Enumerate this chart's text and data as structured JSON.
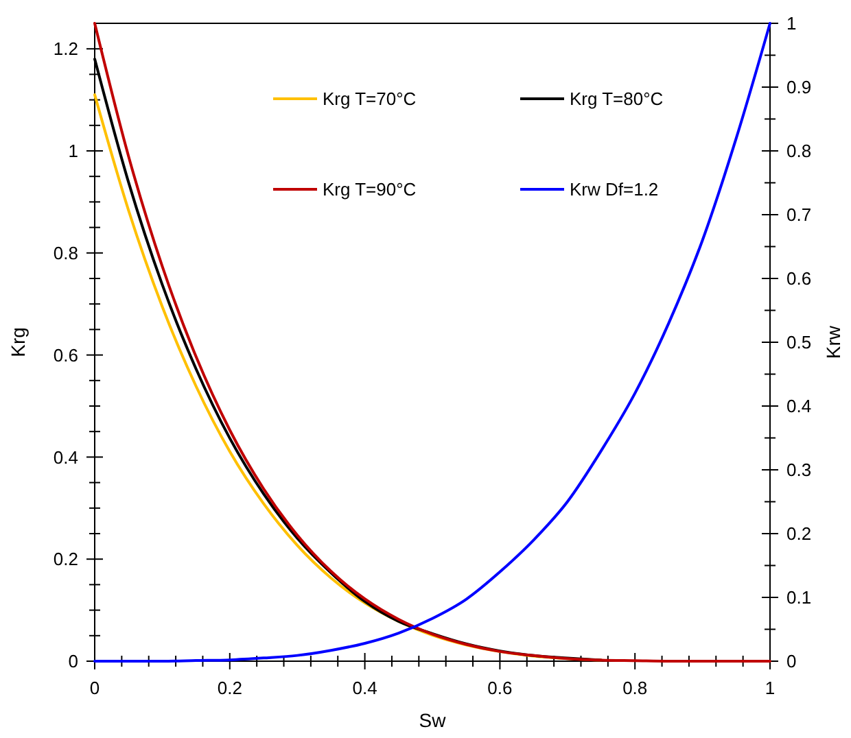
{
  "chart_data": {
    "type": "line",
    "xlabel": "Sw",
    "ylabel": "Krg",
    "y2label": "Krw",
    "x": [
      0,
      0.05,
      0.1,
      0.15,
      0.2,
      0.25,
      0.3,
      0.35,
      0.4,
      0.45,
      0.5,
      0.55,
      0.6,
      0.65,
      0.7,
      0.75,
      0.8,
      0.85,
      0.9,
      0.95,
      1
    ],
    "series": [
      {
        "name": "Krg T=70°C",
        "color": "#ffc000",
        "values": [
          1.11,
          0.884,
          0.695,
          0.539,
          0.411,
          0.309,
          0.227,
          0.163,
          0.114,
          0.078,
          0.051,
          0.032,
          0.019,
          0.01,
          0.005,
          0.002,
          null,
          null,
          null,
          null,
          null
        ]
      },
      {
        "name": "Krg T=80°C",
        "color": "#000000",
        "values": [
          1.18,
          0.939,
          0.738,
          0.573,
          0.437,
          0.328,
          0.241,
          0.173,
          0.117,
          0.078,
          0.054,
          0.034,
          0.02,
          0.011,
          0.006,
          0.002,
          null,
          null,
          null,
          null,
          null
        ]
      },
      {
        "name": "Krg T=90°C",
        "color": "#c00000",
        "values": [
          1.25,
          0.99,
          0.774,
          0.597,
          0.453,
          0.338,
          0.247,
          0.176,
          0.122,
          0.082,
          0.053,
          0.033,
          0.019,
          0.011,
          0.005,
          0.002,
          0.001,
          0,
          0,
          0,
          0
        ]
      },
      {
        "name": "Krw Df=1.2",
        "color": "#0000ff",
        "axis": "y2",
        "values": [
          0,
          0,
          0,
          0.001,
          0.002,
          0.005,
          0.009,
          0.017,
          0.028,
          0.044,
          0.067,
          0.097,
          0.14,
          0.19,
          0.25,
          0.33,
          0.42,
          0.53,
          0.66,
          0.82,
          1
        ]
      }
    ],
    "xlim": [
      0,
      1
    ],
    "xticks": [
      0,
      0.2,
      0.4,
      0.6,
      0.8,
      1
    ],
    "ylim": [
      0,
      1.25
    ],
    "yticks": [
      0,
      0.2,
      0.4,
      0.6,
      0.8,
      1,
      1.2
    ],
    "y2lim": [
      0,
      1
    ],
    "y2ticks": [
      0,
      0.1,
      0.2,
      0.3,
      0.4,
      0.5,
      0.6,
      0.7,
      0.8,
      0.9,
      1
    ],
    "legend": "top",
    "grid": false,
    "marker": "none",
    "line_style": "solid"
  }
}
